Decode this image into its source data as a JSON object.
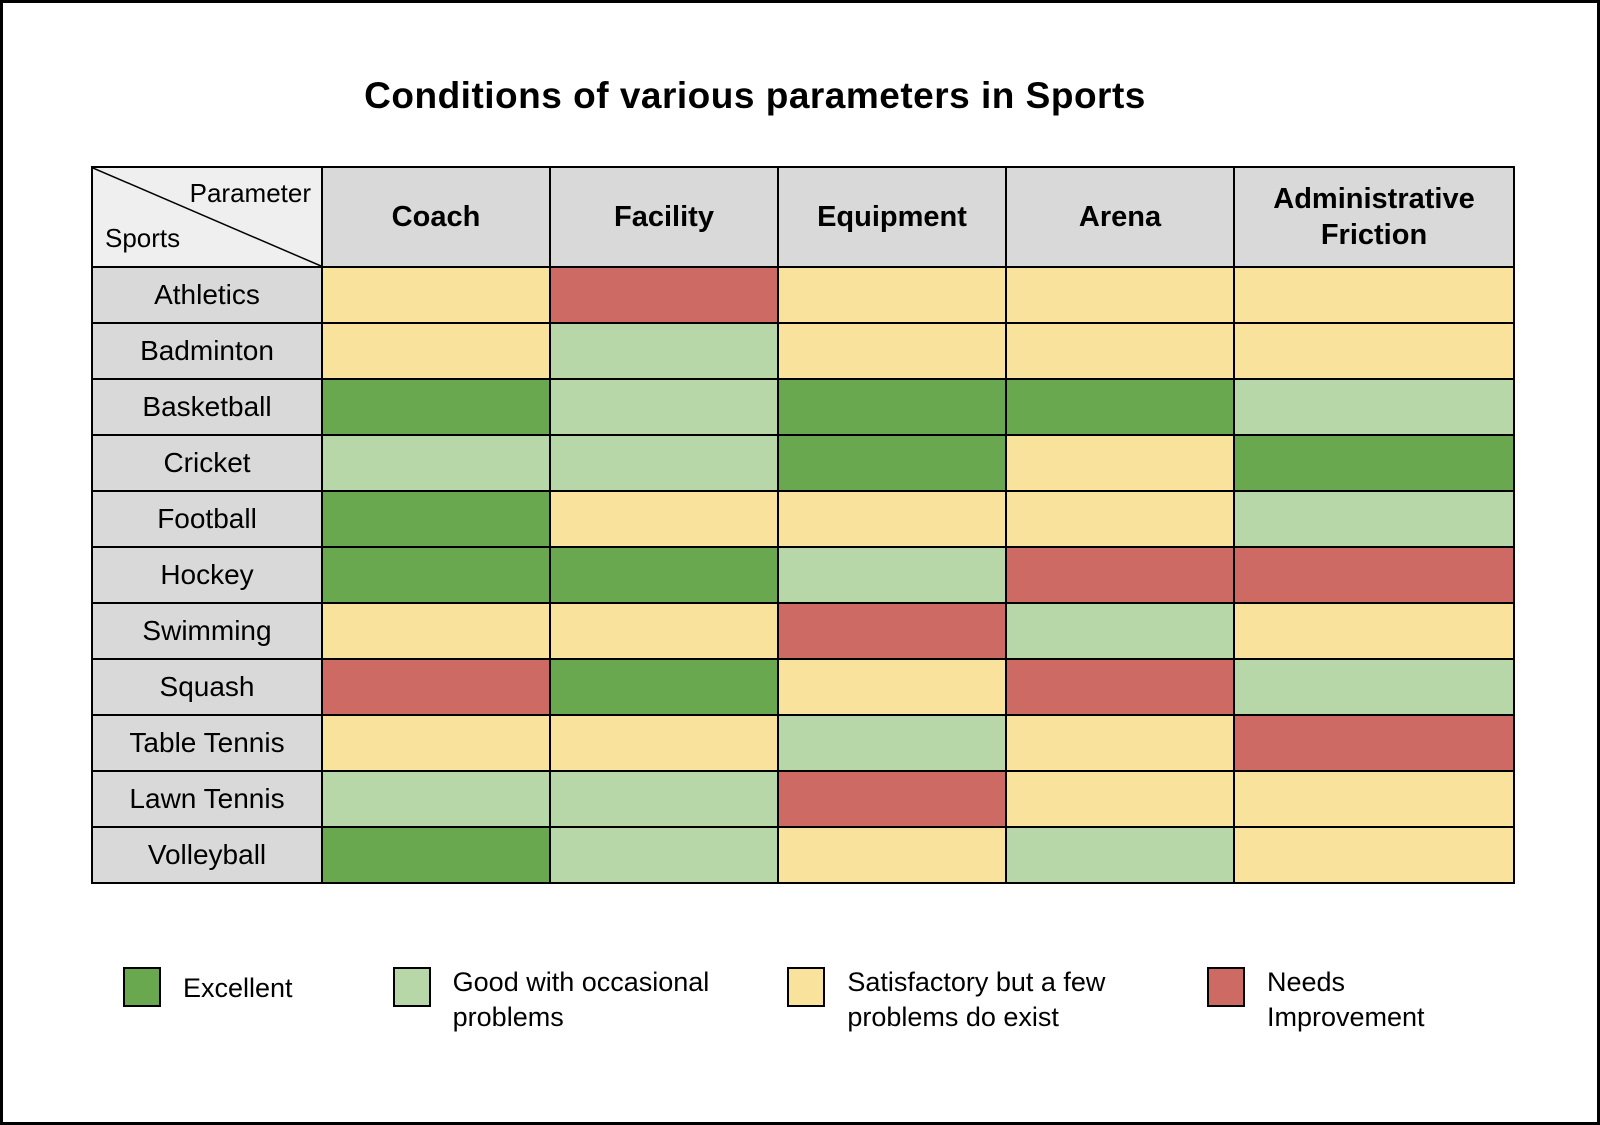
{
  "title": "Conditions of various parameters in Sports",
  "colors": {
    "excellent": "#6aa84f",
    "good": "#b7d7a8",
    "satisfactory": "#f9e29c",
    "needs": "#cd6a63",
    "header": "#d9d9d9",
    "corner": "#efefef"
  },
  "table": {
    "corner": {
      "top_label": "Parameter",
      "bottom_label": "Sports"
    },
    "columns": [
      "Coach",
      "Facility",
      "Equipment",
      "Arena",
      "Administrative Friction"
    ],
    "rows": [
      {
        "sport": "Athletics",
        "values": [
          "satisfactory",
          "needs",
          "satisfactory",
          "satisfactory",
          "satisfactory"
        ]
      },
      {
        "sport": "Badminton",
        "values": [
          "satisfactory",
          "good",
          "satisfactory",
          "satisfactory",
          "satisfactory"
        ]
      },
      {
        "sport": "Basketball",
        "values": [
          "excellent",
          "good",
          "excellent",
          "excellent",
          "good"
        ]
      },
      {
        "sport": "Cricket",
        "values": [
          "good",
          "good",
          "excellent",
          "satisfactory",
          "excellent"
        ]
      },
      {
        "sport": "Football",
        "values": [
          "excellent",
          "satisfactory",
          "satisfactory",
          "satisfactory",
          "good"
        ]
      },
      {
        "sport": "Hockey",
        "values": [
          "excellent",
          "excellent",
          "good",
          "needs",
          "needs"
        ]
      },
      {
        "sport": "Swimming",
        "values": [
          "satisfactory",
          "satisfactory",
          "needs",
          "good",
          "satisfactory"
        ]
      },
      {
        "sport": "Squash",
        "values": [
          "needs",
          "excellent",
          "satisfactory",
          "needs",
          "good"
        ]
      },
      {
        "sport": "Table Tennis",
        "values": [
          "satisfactory",
          "satisfactory",
          "good",
          "satisfactory",
          "needs"
        ]
      },
      {
        "sport": "Lawn Tennis",
        "values": [
          "good",
          "good",
          "needs",
          "satisfactory",
          "satisfactory"
        ]
      },
      {
        "sport": "Volleyball",
        "values": [
          "excellent",
          "good",
          "satisfactory",
          "good",
          "satisfactory"
        ]
      }
    ]
  },
  "legend": [
    {
      "key": "excellent",
      "label": "Excellent"
    },
    {
      "key": "good",
      "label": "Good with occasional problems"
    },
    {
      "key": "satisfactory",
      "label": "Satisfactory but a few problems do exist"
    },
    {
      "key": "needs",
      "label": "Needs Improvement"
    }
  ],
  "chart_data": {
    "type": "heatmap",
    "title": "Conditions of various parameters in Sports",
    "x_categories": [
      "Coach",
      "Facility",
      "Equipment",
      "Arena",
      "Administrative Friction"
    ],
    "y_categories": [
      "Athletics",
      "Badminton",
      "Basketball",
      "Cricket",
      "Football",
      "Hockey",
      "Swimming",
      "Squash",
      "Table Tennis",
      "Lawn Tennis",
      "Volleyball"
    ],
    "values": [
      [
        "satisfactory",
        "needs",
        "satisfactory",
        "satisfactory",
        "satisfactory"
      ],
      [
        "satisfactory",
        "good",
        "satisfactory",
        "satisfactory",
        "satisfactory"
      ],
      [
        "excellent",
        "good",
        "excellent",
        "excellent",
        "good"
      ],
      [
        "good",
        "good",
        "excellent",
        "satisfactory",
        "excellent"
      ],
      [
        "excellent",
        "satisfactory",
        "satisfactory",
        "satisfactory",
        "good"
      ],
      [
        "excellent",
        "excellent",
        "good",
        "needs",
        "needs"
      ],
      [
        "satisfactory",
        "satisfactory",
        "needs",
        "good",
        "satisfactory"
      ],
      [
        "needs",
        "excellent",
        "satisfactory",
        "needs",
        "good"
      ],
      [
        "satisfactory",
        "satisfactory",
        "good",
        "satisfactory",
        "needs"
      ],
      [
        "good",
        "good",
        "needs",
        "satisfactory",
        "satisfactory"
      ],
      [
        "excellent",
        "good",
        "satisfactory",
        "good",
        "satisfactory"
      ]
    ],
    "scale": [
      {
        "category": "excellent",
        "label": "Excellent",
        "color": "#6aa84f"
      },
      {
        "category": "good",
        "label": "Good with occasional problems",
        "color": "#b7d7a8"
      },
      {
        "category": "satisfactory",
        "label": "Satisfactory but a few problems do exist",
        "color": "#f9e29c"
      },
      {
        "category": "needs",
        "label": "Needs Improvement",
        "color": "#cd6a63"
      }
    ],
    "legend_position": "bottom",
    "grid": true
  }
}
